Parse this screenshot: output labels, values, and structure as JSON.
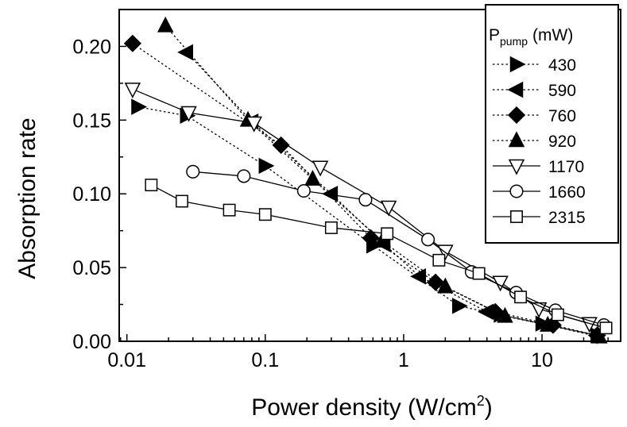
{
  "chart_data": {
    "type": "scatter",
    "x_scale": "log",
    "xlim": [
      0.0088,
      37
    ],
    "ylim": [
      0.0,
      0.225
    ],
    "xlabel_main": "Power density (W/cm",
    "xlabel_sup": "2",
    "xlabel_close": ")",
    "ylabel": "Absorption rate",
    "x_ticks": [
      {
        "value": 0.01,
        "label": "0.01"
      },
      {
        "value": 0.1,
        "label": "0.1"
      },
      {
        "value": 1,
        "label": "1"
      },
      {
        "value": 10,
        "label": "10"
      }
    ],
    "y_ticks": [
      {
        "value": 0.0,
        "label": "0.00"
      },
      {
        "value": 0.05,
        "label": "0.05"
      },
      {
        "value": 0.1,
        "label": "0.10"
      },
      {
        "value": 0.15,
        "label": "0.15"
      },
      {
        "value": 0.2,
        "label": "0.20"
      }
    ],
    "legend": {
      "title_main": "P",
      "title_sub": "pump",
      "title_unit": "(mW)",
      "placement": "top-right"
    },
    "series": [
      {
        "name": "430",
        "marker": "triangle-right",
        "filled": true,
        "line": "dotted",
        "x": [
          0.012,
          0.027,
          0.1,
          0.6,
          2.5,
          5,
          10,
          25
        ],
        "y": [
          0.159,
          0.153,
          0.119,
          0.065,
          0.024,
          0.018,
          0.012,
          0.004
        ]
      },
      {
        "name": "590",
        "marker": "triangle-left",
        "filled": true,
        "line": "dotted",
        "x": [
          0.027,
          0.08,
          0.3,
          0.72,
          1.3,
          4,
          11,
          25
        ],
        "y": [
          0.196,
          0.149,
          0.1,
          0.066,
          0.044,
          0.02,
          0.011,
          0.004
        ]
      },
      {
        "name": "760",
        "marker": "diamond",
        "filled": true,
        "line": "dotted",
        "x": [
          0.011,
          0.13,
          0.58,
          1.7,
          4.6,
          12,
          25
        ],
        "y": [
          0.202,
          0.133,
          0.07,
          0.04,
          0.02,
          0.011,
          0.004
        ]
      },
      {
        "name": "920",
        "marker": "triangle-up",
        "filled": true,
        "line": "dotted",
        "x": [
          0.019,
          0.075,
          0.22,
          0.7,
          2.0,
          5.4,
          11,
          26
        ],
        "y": [
          0.214,
          0.15,
          0.11,
          0.068,
          0.037,
          0.017,
          0.011,
          0.003
        ]
      },
      {
        "name": "1170",
        "marker": "triangle-down",
        "filled": false,
        "line": "solid",
        "x": [
          0.011,
          0.028,
          0.083,
          0.25,
          0.78,
          2.0,
          5,
          9.5,
          22
        ],
        "y": [
          0.171,
          0.155,
          0.148,
          0.118,
          0.091,
          0.061,
          0.04,
          0.022,
          0.012
        ]
      },
      {
        "name": "1660",
        "marker": "circle",
        "filled": false,
        "line": "solid",
        "x": [
          0.03,
          0.07,
          0.19,
          0.53,
          1.5,
          3.1,
          6.5,
          12.5,
          28
        ],
        "y": [
          0.115,
          0.112,
          0.102,
          0.096,
          0.069,
          0.047,
          0.033,
          0.021,
          0.011
        ]
      },
      {
        "name": "2315",
        "marker": "square",
        "filled": false,
        "line": "solid",
        "x": [
          0.015,
          0.025,
          0.055,
          0.1,
          0.3,
          0.76,
          1.8,
          3.5,
          7,
          13,
          29
        ],
        "y": [
          0.106,
          0.095,
          0.089,
          0.086,
          0.077,
          0.073,
          0.055,
          0.046,
          0.03,
          0.018,
          0.009
        ]
      }
    ]
  }
}
